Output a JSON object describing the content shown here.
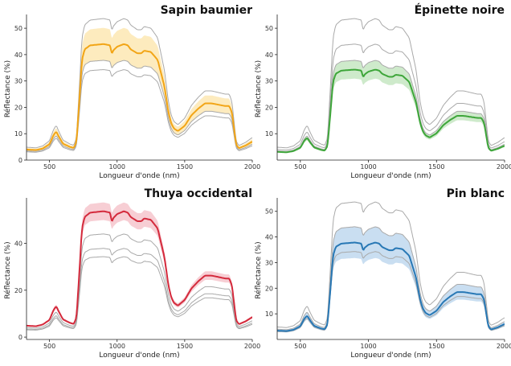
{
  "chart_data": [
    {
      "type": "line",
      "title": "Sapin baumier",
      "xlabel": "Longueur d'onde (nm)",
      "ylabel": "Réflectance (%)",
      "xlim": [
        330,
        2000
      ],
      "ylim": [
        0,
        54
      ],
      "xticks": [
        500,
        1000,
        1500,
        2000
      ],
      "yticks": [
        0,
        10,
        20,
        30,
        40,
        50
      ],
      "grid": false,
      "color": "#f2a516",
      "band_color": "#fde7b3",
      "highlight_scale": 1.0,
      "band_halfwidth": 0.14
    },
    {
      "type": "line",
      "title": "Épinette noire",
      "xlabel": "Longueur d'onde (nm)",
      "ylabel": "Réflectance (%)",
      "xlim": [
        330,
        2000
      ],
      "ylim": [
        0,
        54
      ],
      "xticks": [
        500,
        1000,
        1500,
        2000
      ],
      "yticks": [
        10,
        20,
        30,
        40,
        50
      ],
      "grid": false,
      "color": "#3ea63a",
      "band_color": "#c6e6c2",
      "highlight_scale": 0.78,
      "band_halfwidth": 0.1
    },
    {
      "type": "line",
      "title": "Thuya occidental",
      "xlabel": "Longueur d'onde (nm)",
      "ylabel": "Réflectance (%)",
      "xlim": [
        330,
        2000
      ],
      "ylim": [
        -1,
        58
      ],
      "xticks": [
        500,
        1000,
        1500,
        2000
      ],
      "yticks": [
        0,
        20,
        40
      ],
      "grid": false,
      "color": "#d42a3c",
      "band_color": "#f6c6cc",
      "highlight_scale": 1.22,
      "band_halfwidth": 0.07
    },
    {
      "type": "line",
      "title": "Pin blanc",
      "xlabel": "Longueur d'onde (nm)",
      "ylabel": "Réflectance (%)",
      "xlim": [
        330,
        2000
      ],
      "ylim": [
        0,
        54
      ],
      "xticks": [
        500,
        1000,
        1500,
        2000
      ],
      "yticks": [
        10,
        20,
        30,
        40,
        50
      ],
      "grid": false,
      "color": "#2878b5",
      "band_color": "#bfd8ee",
      "highlight_scale": 0.86,
      "band_halfwidth": 0.16
    }
  ],
  "reference_spectrum": {
    "wavelength_nm": [
      330,
      400,
      450,
      500,
      530,
      550,
      570,
      600,
      650,
      680,
      700,
      720,
      740,
      760,
      800,
      900,
      950,
      960,
      970,
      980,
      1000,
      1050,
      1080,
      1100,
      1150,
      1180,
      1200,
      1250,
      1300,
      1350,
      1380,
      1400,
      1420,
      1450,
      1500,
      1550,
      1600,
      1650,
      1700,
      1750,
      1800,
      1830,
      1850,
      1880,
      1900,
      1950,
      2000
    ],
    "reflectance_pct": [
      4,
      3.8,
      4.4,
      6,
      9.5,
      10.8,
      8.8,
      6.2,
      5,
      4.6,
      7,
      22,
      38,
      42,
      43.5,
      44,
      43.5,
      40,
      41.5,
      42,
      43,
      44,
      43.5,
      42,
      40.5,
      40.5,
      41.5,
      41,
      38,
      28,
      18,
      14,
      12,
      11,
      13,
      17,
      19.5,
      21.5,
      21.5,
      21,
      20.5,
      20.5,
      18,
      6,
      4.5,
      5.5,
      7
    ]
  },
  "reference_scales": [
    0.78,
    0.86,
    1.0,
    1.22
  ]
}
